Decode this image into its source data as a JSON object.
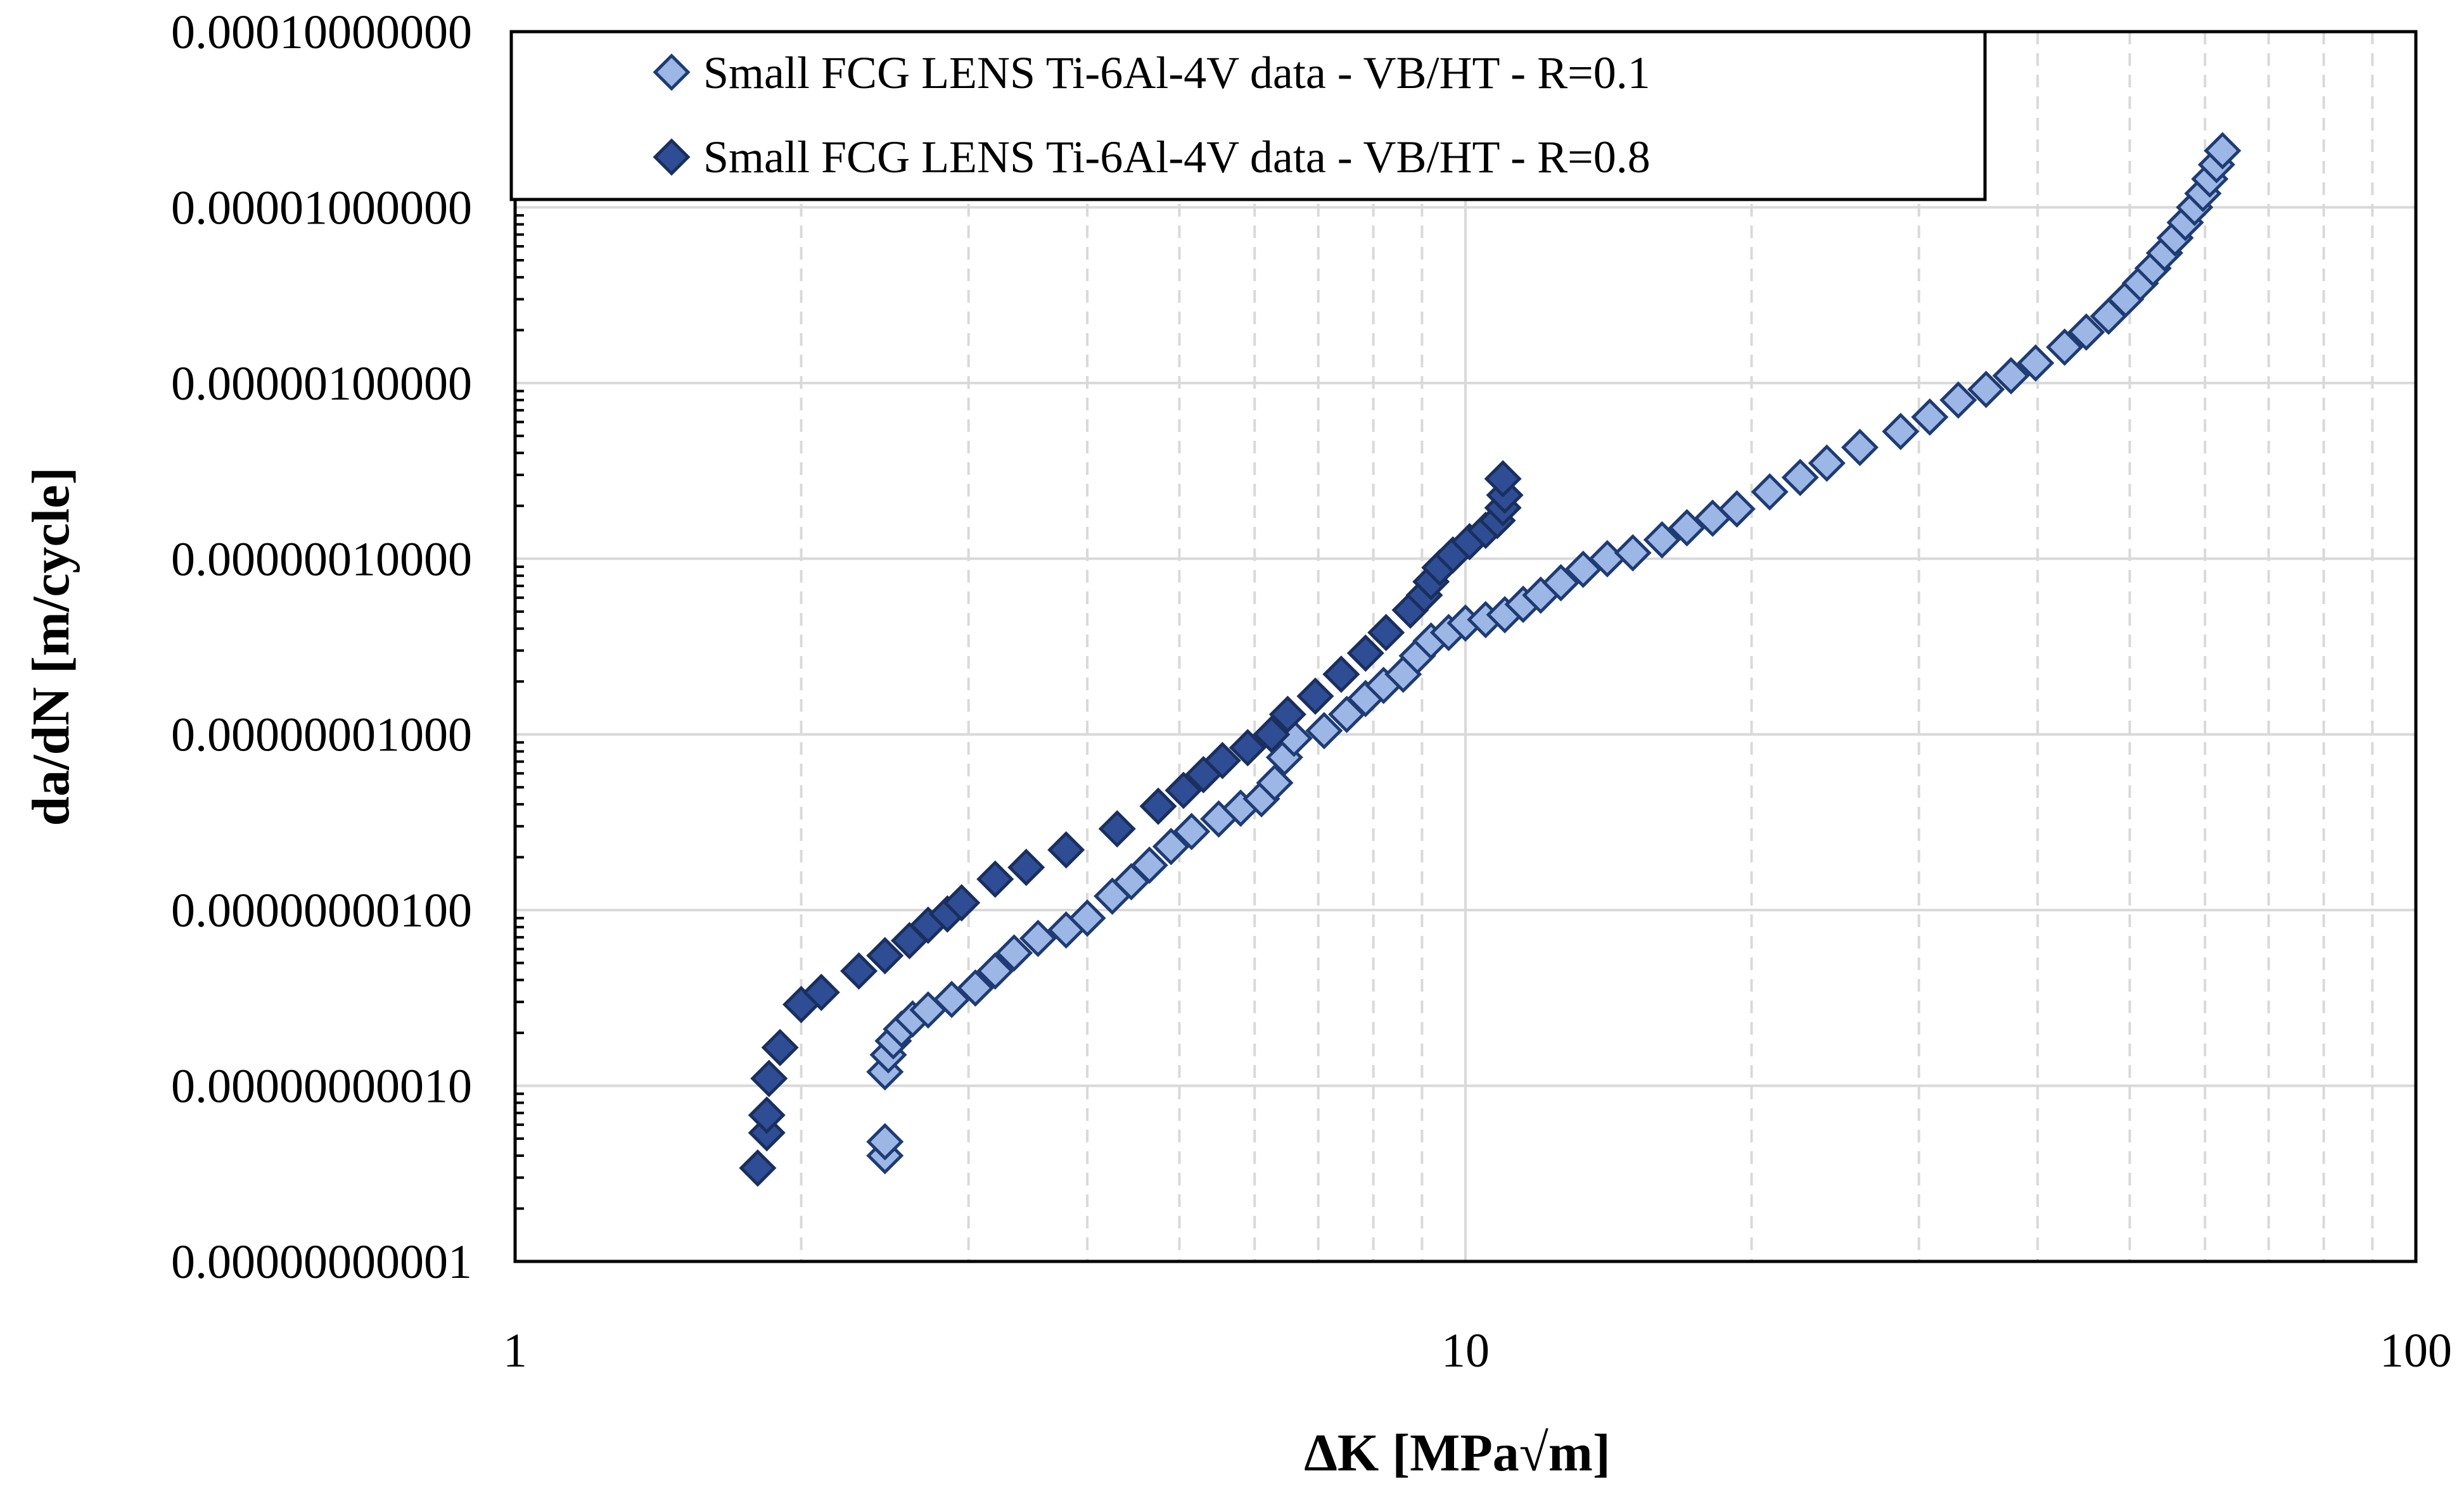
{
  "chart_data": {
    "type": "scatter",
    "x_scale": "log",
    "y_scale": "log",
    "xlabel": "ΔK [MPa√m]",
    "ylabel": "da/dN [m/cycle]",
    "xlim": [
      1,
      100
    ],
    "ylim": [
      1e-11,
      0.0001
    ],
    "grid": true,
    "legend_position": "top-left",
    "x_ticks": [
      {
        "value": 1,
        "label": "1"
      },
      {
        "value": 10,
        "label": "10"
      },
      {
        "value": 100,
        "label": "100"
      }
    ],
    "y_ticks": [
      {
        "value": 0.0001,
        "label": "0.00010000000"
      },
      {
        "value": 1e-05,
        "label": "0.00001000000"
      },
      {
        "value": 1e-06,
        "label": "0.00000100000"
      },
      {
        "value": 1e-07,
        "label": "0.00000010000"
      },
      {
        "value": 1e-08,
        "label": "0.00000001000"
      },
      {
        "value": 1e-09,
        "label": "0.00000000100"
      },
      {
        "value": 1e-10,
        "label": "0.00000000010"
      },
      {
        "value": 1e-11,
        "label": "0.00000000001"
      }
    ],
    "series": [
      {
        "name": "Small FCG LENS Ti-6Al-4V data - VB/HT - R=0.1",
        "color": "#9cb7e5",
        "edge_color": "#1f3b73",
        "points": [
          [
            2.45,
            4e-11
          ],
          [
            2.45,
            4.8e-11
          ],
          [
            2.45,
            1.2e-10
          ],
          [
            2.47,
            1.5e-10
          ],
          [
            2.5,
            1.8e-10
          ],
          [
            2.55,
            2.1e-10
          ],
          [
            2.62,
            2.4e-10
          ],
          [
            2.72,
            2.7e-10
          ],
          [
            2.88,
            3.1e-10
          ],
          [
            3.05,
            3.6e-10
          ],
          [
            3.2,
            4.5e-10
          ],
          [
            3.35,
            5.7e-10
          ],
          [
            3.55,
            6.9e-10
          ],
          [
            3.8,
            7.7e-10
          ],
          [
            4.0,
            9e-10
          ],
          [
            4.25,
            1.2e-09
          ],
          [
            4.45,
            1.45e-09
          ],
          [
            4.65,
            1.8e-09
          ],
          [
            4.9,
            2.3e-09
          ],
          [
            5.15,
            2.8e-09
          ],
          [
            5.5,
            3.3e-09
          ],
          [
            5.8,
            3.8e-09
          ],
          [
            6.1,
            4.3e-09
          ],
          [
            6.3,
            5.3e-09
          ],
          [
            6.45,
            7.4e-09
          ],
          [
            6.6,
            9.5e-09
          ],
          [
            7.1,
            1.05e-08
          ],
          [
            7.5,
            1.3e-08
          ],
          [
            7.85,
            1.6e-08
          ],
          [
            8.2,
            1.9e-08
          ],
          [
            8.6,
            2.2e-08
          ],
          [
            8.9,
            2.8e-08
          ],
          [
            9.2,
            3.4e-08
          ],
          [
            9.6,
            3.8e-08
          ],
          [
            10.0,
            4.3e-08
          ],
          [
            10.5,
            4.5e-08
          ],
          [
            11.0,
            4.8e-08
          ],
          [
            11.5,
            5.5e-08
          ],
          [
            12.0,
            6.2e-08
          ],
          [
            12.6,
            7.3e-08
          ],
          [
            13.3,
            8.7e-08
          ],
          [
            14.1,
            1e-07
          ],
          [
            15.0,
            1.08e-07
          ],
          [
            16.1,
            1.28e-07
          ],
          [
            17.1,
            1.5e-07
          ],
          [
            18.2,
            1.7e-07
          ],
          [
            19.3,
            1.92e-07
          ],
          [
            20.9,
            2.4e-07
          ],
          [
            22.5,
            2.9e-07
          ],
          [
            24.0,
            3.5e-07
          ],
          [
            26.0,
            4.3e-07
          ],
          [
            28.7,
            5.3e-07
          ],
          [
            30.8,
            6.4e-07
          ],
          [
            33.0,
            8e-07
          ],
          [
            35.3,
            9.2e-07
          ],
          [
            37.5,
            1.1e-06
          ],
          [
            39.8,
            1.3e-06
          ],
          [
            42.7,
            1.6e-06
          ],
          [
            45.0,
            1.95e-06
          ],
          [
            47.5,
            2.4e-06
          ],
          [
            49.5,
            3e-06
          ],
          [
            51.3,
            3.7e-06
          ],
          [
            52.9,
            4.5e-06
          ],
          [
            54.4,
            5.5e-06
          ],
          [
            55.8,
            6.7e-06
          ],
          [
            57.2,
            8.2e-06
          ],
          [
            58.5,
            1e-05
          ],
          [
            59.7,
            1.2e-05
          ],
          [
            60.7,
            1.45e-05
          ],
          [
            61.7,
            1.75e-05
          ],
          [
            62.6,
            2.1e-05
          ]
        ]
      },
      {
        "name": "Small FCG LENS Ti-6Al-4V data - VB/HT - R=0.8",
        "color": "#2e4d94",
        "edge_color": "#1a2f5e",
        "points": [
          [
            1.8,
            3.4e-11
          ],
          [
            1.84,
            5.4e-11
          ],
          [
            1.84,
            6.8e-11
          ],
          [
            1.85,
            1.1e-10
          ],
          [
            1.9,
            1.65e-10
          ],
          [
            2.0,
            2.9e-10
          ],
          [
            2.1,
            3.4e-10
          ],
          [
            2.3,
            4.5e-10
          ],
          [
            2.45,
            5.5e-10
          ],
          [
            2.6,
            6.7e-10
          ],
          [
            2.72,
            8.2e-10
          ],
          [
            2.85,
            9.5e-10
          ],
          [
            2.95,
            1.1e-09
          ],
          [
            3.2,
            1.5e-09
          ],
          [
            3.45,
            1.75e-09
          ],
          [
            3.8,
            2.2e-09
          ],
          [
            4.3,
            2.9e-09
          ],
          [
            4.75,
            3.9e-09
          ],
          [
            5.05,
            4.8e-09
          ],
          [
            5.3,
            5.9e-09
          ],
          [
            5.55,
            7.1e-09
          ],
          [
            5.9,
            8.4e-09
          ],
          [
            6.25,
            1e-08
          ],
          [
            6.5,
            1.3e-08
          ],
          [
            6.95,
            1.65e-08
          ],
          [
            7.4,
            2.2e-08
          ],
          [
            7.85,
            2.9e-08
          ],
          [
            8.25,
            3.8e-08
          ],
          [
            8.75,
            5.1e-08
          ],
          [
            9.05,
            6.2e-08
          ],
          [
            9.2,
            7.4e-08
          ],
          [
            9.4,
            8.9e-08
          ],
          [
            9.7,
            1.05e-07
          ],
          [
            10.1,
            1.25e-07
          ],
          [
            10.5,
            1.45e-07
          ],
          [
            10.8,
            1.65e-07
          ],
          [
            10.95,
            1.95e-07
          ],
          [
            11.0,
            2.3e-07
          ],
          [
            10.95,
            2.85e-07
          ]
        ]
      }
    ]
  }
}
